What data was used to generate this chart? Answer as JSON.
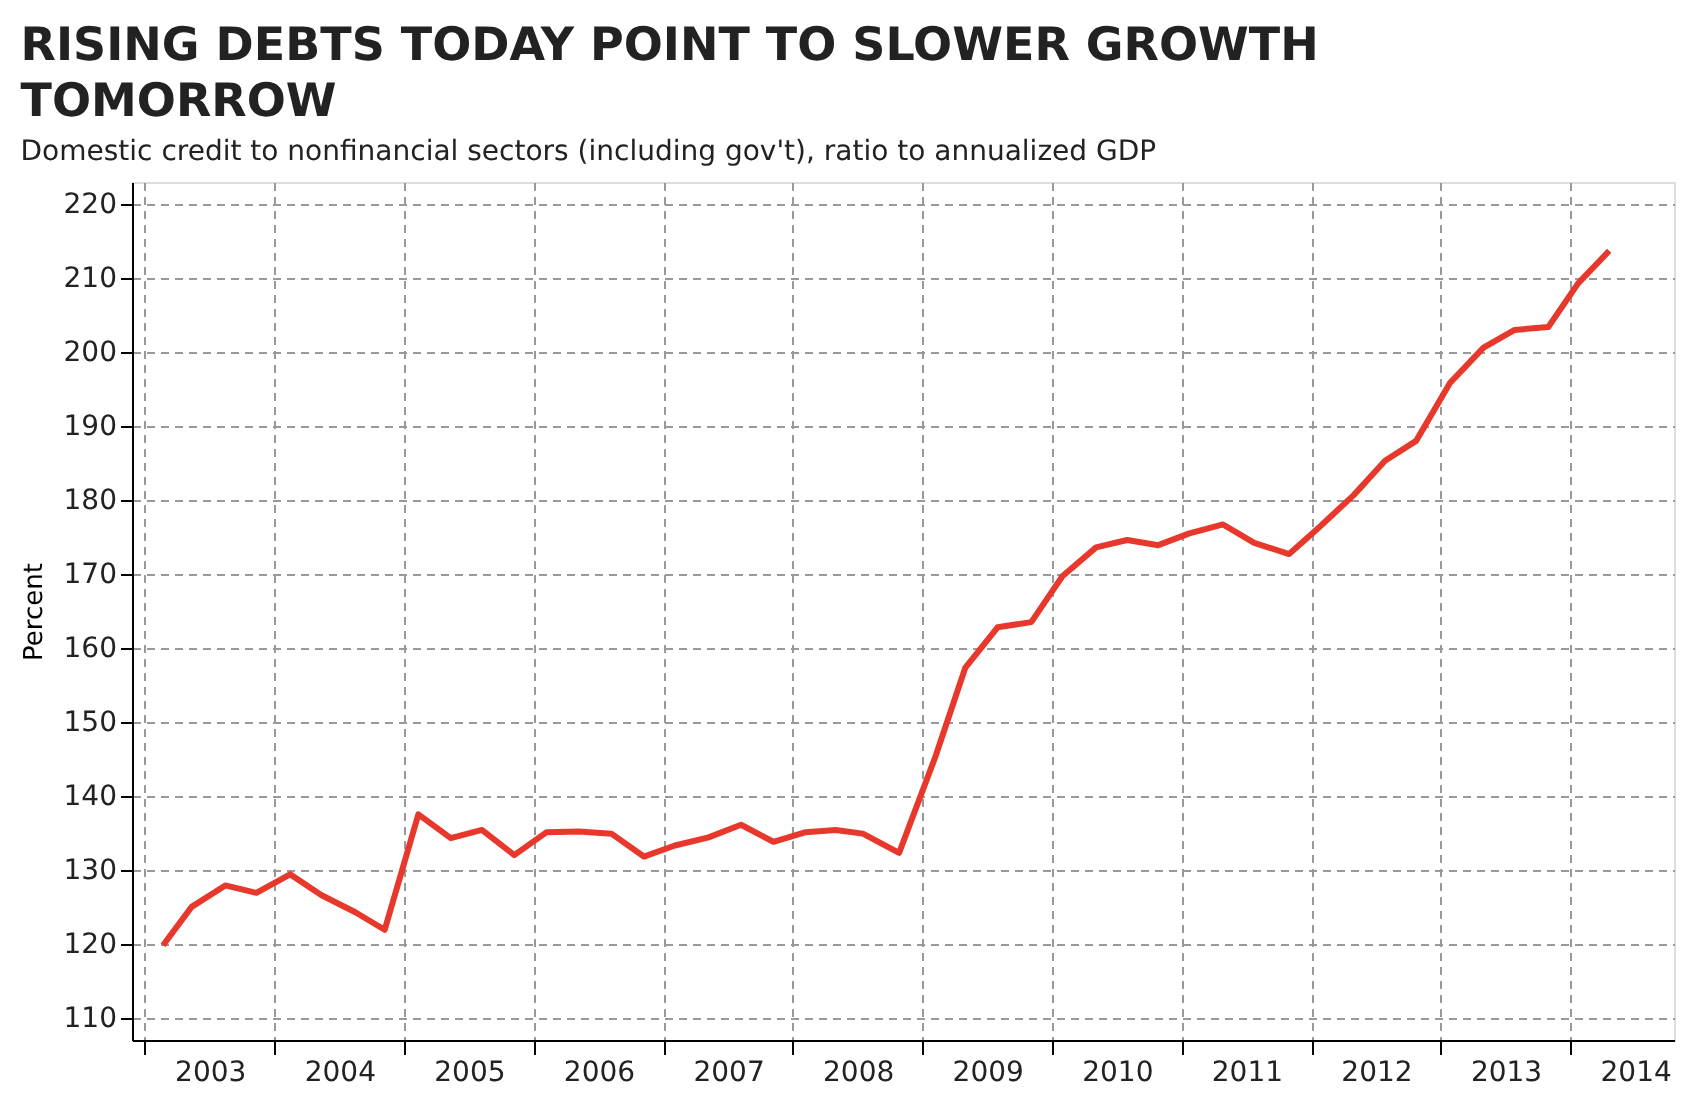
{
  "chart_data": {
    "type": "line",
    "title": "RISING DEBTS TODAY POINT TO SLOWER GROWTH TOMORROW",
    "subtitle": "Domestic credit to nonfinancial sectors (including gov't), ratio to annualized GDP",
    "ylabel": "Percent",
    "x": [
      2003.14,
      2003.36,
      2003.62,
      2003.86,
      2004.12,
      2004.36,
      2004.62,
      2004.85,
      2005.11,
      2005.36,
      2005.6,
      2005.85,
      2006.1,
      2006.35,
      2006.6,
      2006.85,
      2007.09,
      2007.35,
      2007.6,
      2007.85,
      2008.1,
      2008.33,
      2008.54,
      2008.82,
      2009.1,
      2009.33,
      2009.58,
      2009.84,
      2010.08,
      2010.34,
      2010.58,
      2010.82,
      2011.06,
      2011.32,
      2011.56,
      2011.83,
      2012.06,
      2012.33,
      2012.57,
      2012.81,
      2013.07,
      2013.33,
      2013.57,
      2013.83,
      2014.06,
      2014.3
    ],
    "series": [
      {
        "color": "#e8382c",
        "values": [
          119.8,
          125.0,
          127.9,
          126.9,
          129.4,
          126.6,
          124.3,
          121.9,
          137.5,
          134.3,
          135.4,
          132.0,
          135.1,
          135.2,
          134.9,
          131.8,
          133.3,
          134.4,
          136.1,
          133.8,
          135.1,
          135.4,
          134.9,
          132.3,
          145.3,
          157.3,
          162.8,
          163.5,
          169.7,
          173.6,
          174.6,
          173.9,
          175.5,
          176.7,
          174.2,
          172.7,
          176.3,
          180.7,
          185.3,
          188.0,
          195.8,
          200.6,
          203.0,
          203.4,
          209.3,
          213.7
        ]
      }
    ],
    "xlim": [
      2002.9,
      2014.8
    ],
    "xticks": [
      {
        "value": 2003,
        "label": null
      },
      {
        "value": 2003.5,
        "label": "2003"
      },
      {
        "value": 2004,
        "label": null
      },
      {
        "value": 2004.5,
        "label": "2004"
      },
      {
        "value": 2005,
        "label": null
      },
      {
        "value": 2005.5,
        "label": "2005"
      },
      {
        "value": 2006,
        "label": null
      },
      {
        "value": 2006.5,
        "label": "2006"
      },
      {
        "value": 2007,
        "label": null
      },
      {
        "value": 2007.5,
        "label": "2007"
      },
      {
        "value": 2008,
        "label": null
      },
      {
        "value": 2008.5,
        "label": "2008"
      },
      {
        "value": 2009,
        "label": null
      },
      {
        "value": 2009.5,
        "label": "2009"
      },
      {
        "value": 2010,
        "label": null
      },
      {
        "value": 2010.5,
        "label": "2010"
      },
      {
        "value": 2011,
        "label": null
      },
      {
        "value": 2011.5,
        "label": "2011"
      },
      {
        "value": 2012,
        "label": null
      },
      {
        "value": 2012.5,
        "label": "2012"
      },
      {
        "value": 2013,
        "label": null
      },
      {
        "value": 2013.5,
        "label": "2013"
      },
      {
        "value": 2014,
        "label": null
      },
      {
        "value": 2014.5,
        "label": "2014"
      }
    ],
    "ylim": [
      107,
      223
    ],
    "yticks": [
      110,
      120,
      130,
      140,
      150,
      160,
      170,
      180,
      190,
      200,
      210,
      220
    ],
    "grid": true,
    "marker": "none",
    "line_style": "solid"
  }
}
